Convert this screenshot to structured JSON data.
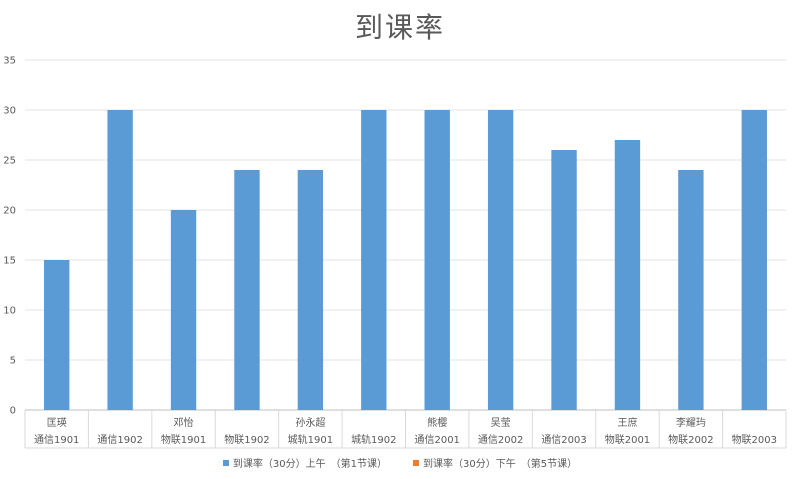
{
  "chart_data": {
    "type": "bar",
    "title": "到课率",
    "ylim": [
      0,
      35
    ],
    "yticks": [
      0,
      5,
      10,
      15,
      20,
      25,
      30,
      35
    ],
    "grid": true,
    "legend_position": "bottom",
    "categories": [
      {
        "name": "匡瑛",
        "class": "通信1901"
      },
      {
        "name": "",
        "class": "通信1902"
      },
      {
        "name": "邓怡",
        "class": "物联1901"
      },
      {
        "name": "",
        "class": "物联1902"
      },
      {
        "name": "孙永超",
        "class": "城轨1901"
      },
      {
        "name": "",
        "class": "城轨1902"
      },
      {
        "name": "熊樱",
        "class": "通信2001"
      },
      {
        "name": "吴莹",
        "class": "通信2002"
      },
      {
        "name": "",
        "class": "通信2003"
      },
      {
        "name": "王庶",
        "class": "物联2001"
      },
      {
        "name": "李耀玙",
        "class": "物联2002"
      },
      {
        "name": "",
        "class": "物联2003"
      }
    ],
    "series": [
      {
        "name": "到课率（30分）上午　（第1节课）",
        "color": "#5b9bd5",
        "values": [
          15,
          30,
          20,
          24,
          24,
          30,
          30,
          30,
          26,
          27,
          24,
          30
        ]
      },
      {
        "name": "到课率（30分）下午　（第5节课）",
        "color": "#ed7d31",
        "values": [
          null,
          null,
          null,
          null,
          null,
          null,
          null,
          null,
          null,
          null,
          null,
          null
        ]
      }
    ]
  }
}
